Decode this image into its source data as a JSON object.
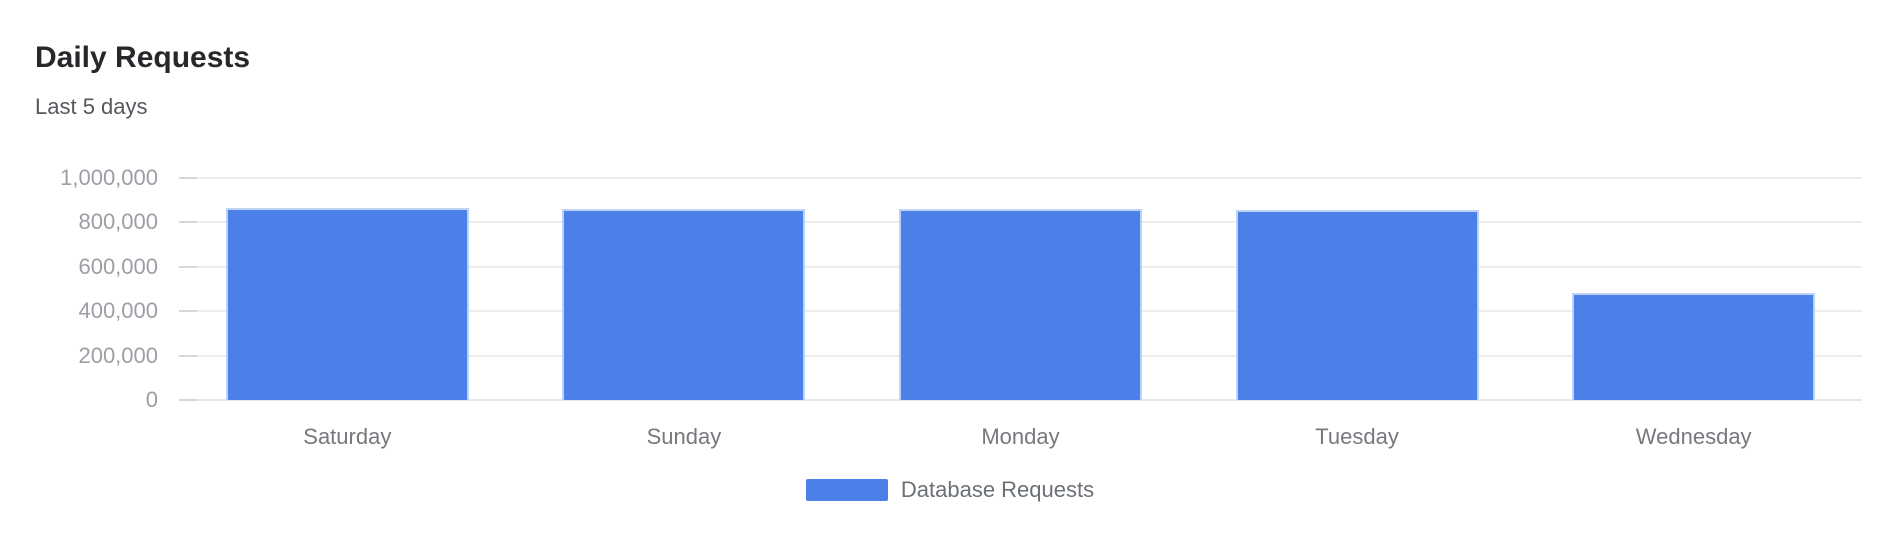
{
  "header": {
    "title": "Daily Requests",
    "subtitle": "Last 5 days"
  },
  "chart_data": {
    "type": "bar",
    "title": "Daily Requests",
    "subtitle": "Last 5 days",
    "categories": [
      "Saturday",
      "Sunday",
      "Monday",
      "Tuesday",
      "Wednesday"
    ],
    "series": [
      {
        "name": "Database Requests",
        "values": [
          864000,
          862000,
          860000,
          855000,
          480000
        ],
        "color": "#4b80e8"
      }
    ],
    "xlabel": "",
    "ylabel": "",
    "ylim": [
      0,
      1000000
    ],
    "yticks": [
      {
        "value": 0,
        "label": "0"
      },
      {
        "value": 200000,
        "label": "200,000"
      },
      {
        "value": 400000,
        "label": "400,000"
      },
      {
        "value": 600000,
        "label": "600,000"
      },
      {
        "value": 800000,
        "label": "800,000"
      },
      {
        "value": 1000000,
        "label": "1,000,000"
      }
    ],
    "grid": "horizontal",
    "legend_position": "bottom"
  },
  "legend": {
    "items": [
      {
        "label": "Database Requests",
        "color": "#4b80e8"
      }
    ]
  },
  "colors": {
    "bar": "#4b80e8",
    "gridline": "#ededed",
    "tick": "#d7d7d7",
    "title_text": "#26282b",
    "axis_label_text": "#9b9fa5"
  }
}
